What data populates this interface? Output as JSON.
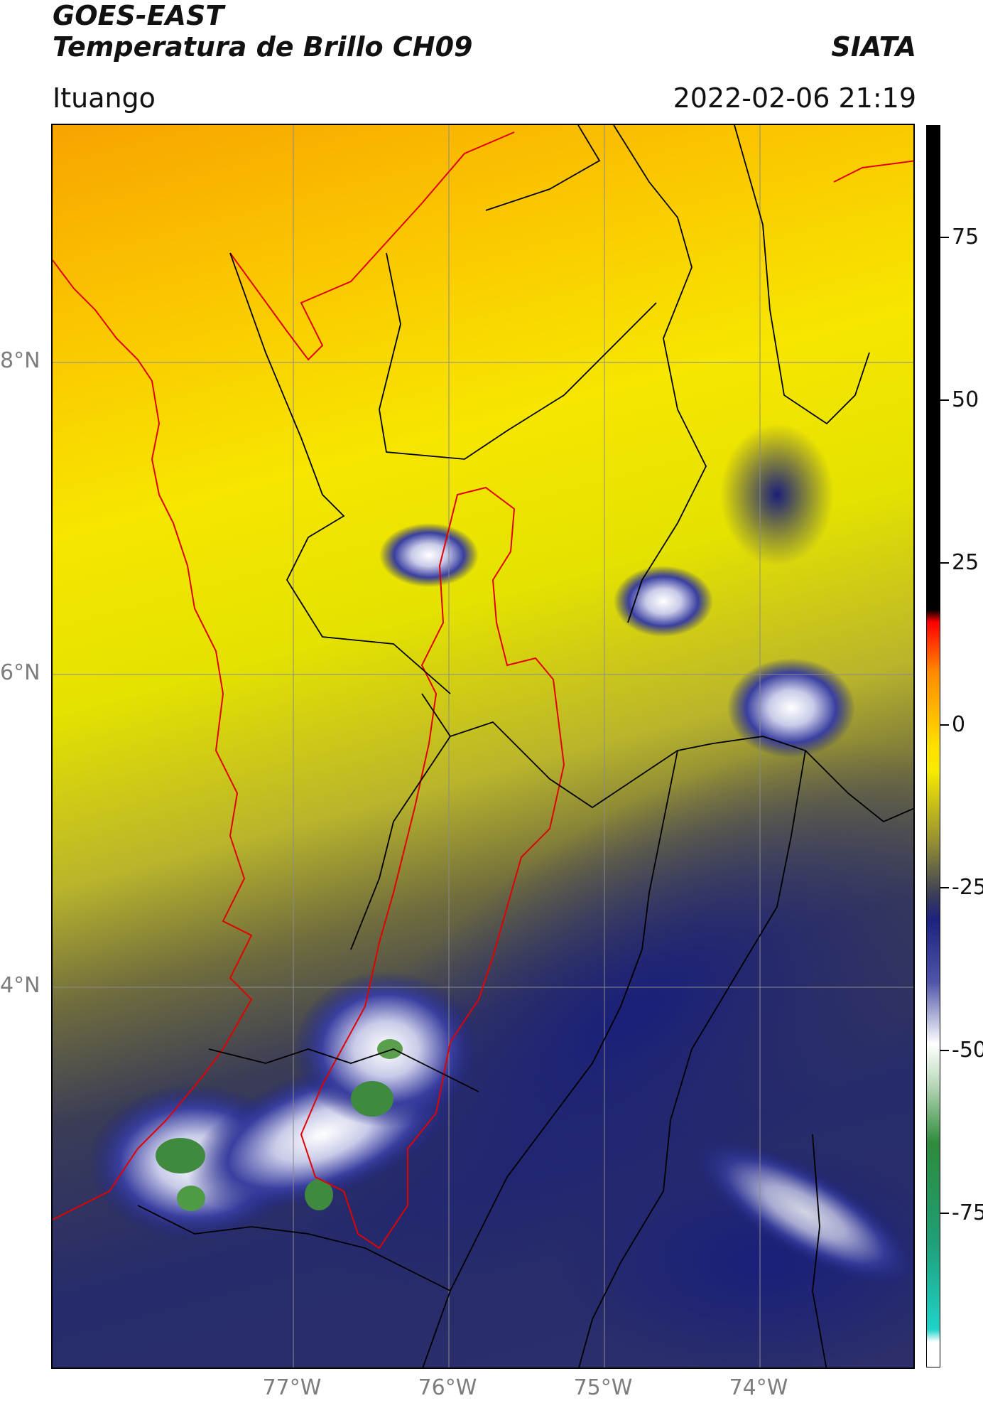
{
  "header": {
    "satellite": "GOES-EAST",
    "product": "Temperatura de Brillo CH09",
    "org": "SIATA",
    "region": "Ituango",
    "datetime": "2022-02-06 21:19"
  },
  "map": {
    "lat_labels": [
      "8°N",
      "6°N",
      "4°N"
    ],
    "lon_labels": [
      "77°W",
      "76°W",
      "75°W",
      "74°W"
    ],
    "colors": {
      "coast_border": "#e00000",
      "admin_border": "#000000",
      "grid": "#8a8a8a"
    }
  },
  "colorbar": {
    "ticks": [
      "75",
      "50",
      "25",
      "0",
      "-25",
      "-50",
      "-75"
    ],
    "palette": [
      "#000000",
      "#ff0000",
      "#ff9a00",
      "#ffe800",
      "#8f8a35",
      "#1c2280",
      "#ffffff",
      "#2e8b3a",
      "#1fd3c8",
      "#ffffff"
    ]
  }
}
